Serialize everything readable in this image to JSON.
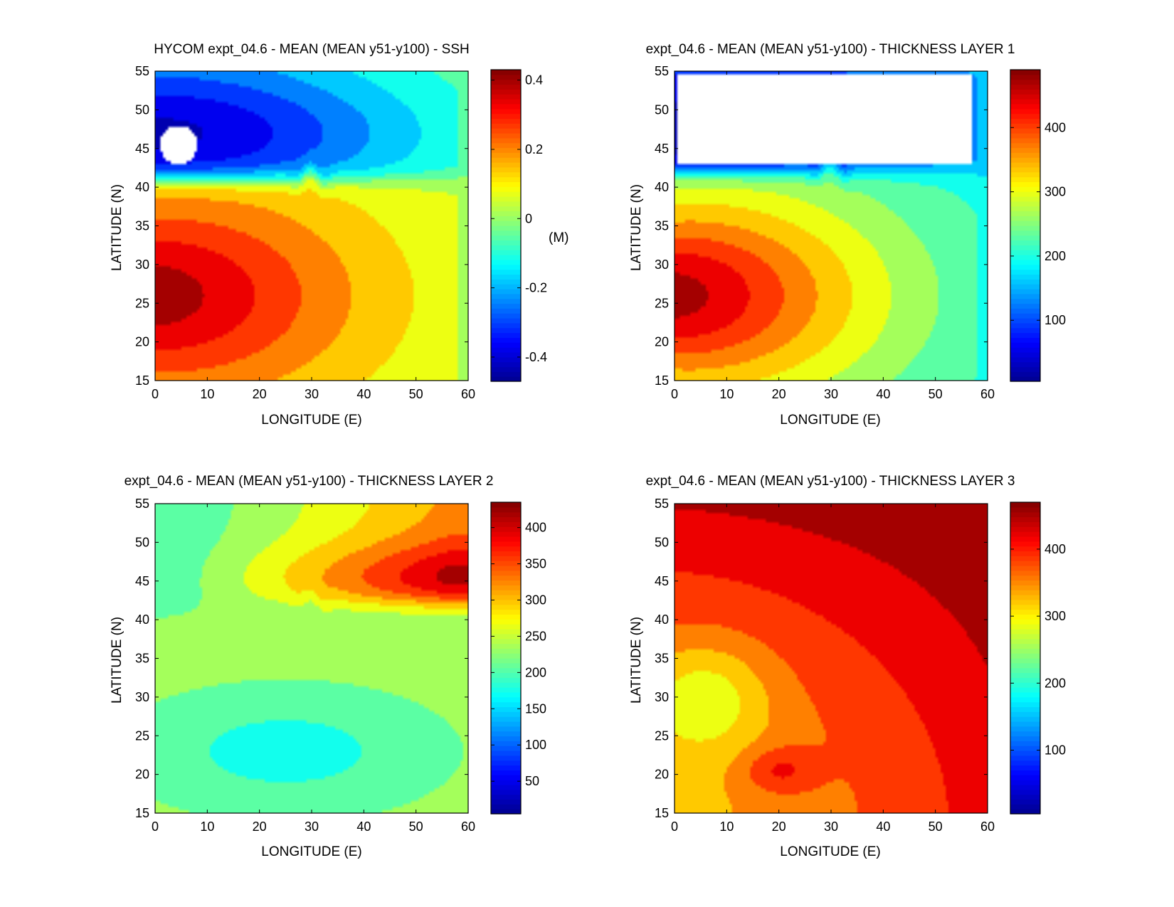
{
  "colormap": [
    "#00008f",
    "#0000ff",
    "#0080ff",
    "#00ffff",
    "#80ff80",
    "#ffff00",
    "#ff8000",
    "#ff0000",
    "#800000"
  ],
  "chart_data": [
    {
      "id": "ssh",
      "type": "contourf",
      "title": "HYCOM expt_04.6 - MEAN (MEAN y51-y100) - SSH",
      "xlabel": "LONGITUDE (E)",
      "ylabel": "LATITUDE (N)",
      "xlim": [
        0,
        60
      ],
      "ylim": [
        15,
        55
      ],
      "xticks": [
        0,
        10,
        20,
        30,
        40,
        50,
        60
      ],
      "yticks": [
        15,
        20,
        25,
        30,
        35,
        40,
        45,
        50,
        55
      ],
      "colorbar": {
        "range": [
          -0.47,
          0.43
        ],
        "ticks": [
          -0.4,
          -0.2,
          0,
          0.2,
          0.4
        ],
        "tick_labels": [
          "-0.4",
          "-0.2",
          "0",
          "0.2",
          "0.4"
        ],
        "unit": "(M)"
      },
      "field": {
        "south_peak": 0.4,
        "north_trough": -0.42,
        "far_field": 0.0,
        "front_lat": 41,
        "gyre_center_lat": 26,
        "masked_region": {
          "lon": [
            1,
            8
          ],
          "lat": [
            43,
            48
          ]
        }
      }
    },
    {
      "id": "layer1",
      "type": "contourf",
      "title": "expt_04.6 - MEAN (MEAN y51-y100) - THICKNESS LAYER 1",
      "xlabel": "LONGITUDE (E)",
      "ylabel": "LATITUDE (N)",
      "xlim": [
        0,
        60
      ],
      "ylim": [
        15,
        55
      ],
      "xticks": [
        0,
        10,
        20,
        30,
        40,
        50,
        60
      ],
      "yticks": [
        15,
        20,
        25,
        30,
        35,
        40,
        45,
        50,
        55
      ],
      "colorbar": {
        "range": [
          5,
          490
        ],
        "ticks": [
          100,
          200,
          300,
          400
        ],
        "tick_labels": [
          "100",
          "200",
          "300",
          "400"
        ],
        "unit": ""
      },
      "field": {
        "south_peak": 470,
        "north_trough": 20,
        "far_field": 170,
        "front_lat": 42,
        "gyre_center_lat": 26,
        "masked_region": {
          "lon": [
            0.5,
            57
          ],
          "lat": [
            43,
            54.5
          ]
        }
      }
    },
    {
      "id": "layer2",
      "type": "contourf",
      "title": "expt_04.6 - MEAN (MEAN y51-y100) - THICKNESS LAYER 2",
      "xlabel": "LONGITUDE (E)",
      "ylabel": "LATITUDE (N)",
      "xlim": [
        0,
        60
      ],
      "ylim": [
        15,
        55
      ],
      "xticks": [
        0,
        10,
        20,
        30,
        40,
        50,
        60
      ],
      "yticks": [
        15,
        20,
        25,
        30,
        35,
        40,
        45,
        50,
        55
      ],
      "colorbar": {
        "range": [
          5,
          435
        ],
        "ticks": [
          50,
          100,
          150,
          200,
          250,
          300,
          350,
          400
        ],
        "tick_labels": [
          "50",
          "100",
          "150",
          "200",
          "250",
          "300",
          "350",
          "400"
        ],
        "unit": ""
      },
      "field": {
        "south_value": 170,
        "north_peak": 420,
        "north_west": 190,
        "interior": 225,
        "front_lat": 42
      }
    },
    {
      "id": "layer3",
      "type": "contourf",
      "title": "expt_04.6 - MEAN (MEAN y51-y100) - THICKNESS LAYER 3",
      "xlabel": "LONGITUDE (E)",
      "ylabel": "LATITUDE (N)",
      "xlim": [
        0,
        60
      ],
      "ylim": [
        15,
        55
      ],
      "xticks": [
        0,
        10,
        20,
        30,
        40,
        50,
        60
      ],
      "yticks": [
        15,
        20,
        25,
        30,
        35,
        40,
        45,
        50,
        55
      ],
      "colorbar": {
        "range": [
          5,
          470
        ],
        "ticks": [
          100,
          200,
          300,
          400
        ],
        "tick_labels": [
          "100",
          "200",
          "300",
          "400"
        ],
        "unit": ""
      },
      "field": {
        "north_value": 440,
        "east_value": 420,
        "west_trough": 255,
        "south_bump": 390,
        "interior": 330
      }
    }
  ]
}
